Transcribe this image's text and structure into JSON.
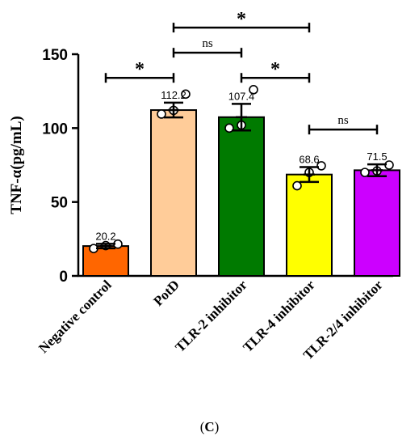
{
  "chart_data": {
    "type": "bar",
    "ylabel": "TNF-α(pg/mL)",
    "ylim": [
      0,
      150
    ],
    "yticks": [
      0,
      50,
      100,
      150
    ],
    "grid": false,
    "categories": [
      "Negative control",
      "PotD",
      "TLR-2 inhibitor",
      "TLR-4 inhibitor",
      "TLR-2/4 inhibitor"
    ],
    "values": [
      20.2,
      112.2,
      107.4,
      68.6,
      71.5
    ],
    "value_labels": [
      "20.2",
      "112.2",
      "107.4",
      "68.6",
      "71.5"
    ],
    "error": [
      1.5,
      5,
      9,
      5,
      4
    ],
    "colors": [
      "#ff6600",
      "#ffcc99",
      "#007a00",
      "#ffff00",
      "#cc00ff"
    ],
    "points": [
      [
        18.5,
        20.5,
        21.5
      ],
      [
        109.5,
        112,
        123
      ],
      [
        100,
        102,
        126
      ],
      [
        61,
        70,
        74.5
      ],
      [
        70,
        71,
        75
      ]
    ],
    "significance": [
      {
        "from": 0,
        "to": 1,
        "y": 134,
        "label": "*"
      },
      {
        "from": 1,
        "to": 2,
        "y": 151,
        "label": "ns"
      },
      {
        "from": 1,
        "to": 3,
        "y": 168,
        "label": "*"
      },
      {
        "from": 2,
        "to": 3,
        "y": 134,
        "label": "*"
      },
      {
        "from": 3,
        "to": 4,
        "y": 99,
        "label": "ns"
      }
    ]
  },
  "panel_label": "C"
}
